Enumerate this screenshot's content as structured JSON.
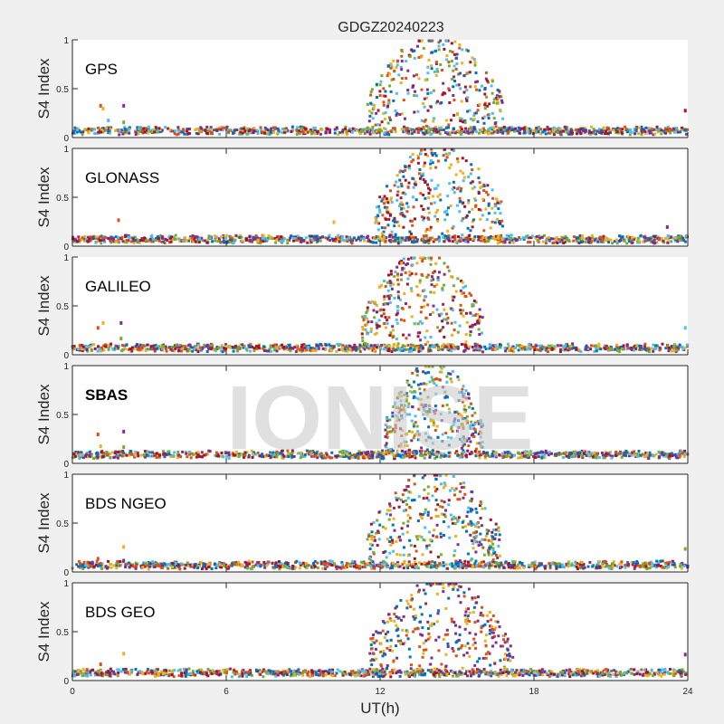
{
  "chart_data": {
    "type": "scatter",
    "title": "GDGZ20240223",
    "xlabel": "UT(h)",
    "ylabel": "S4 Index",
    "xlim": [
      0,
      24
    ],
    "ylim": [
      0,
      1
    ],
    "xticks": [
      0,
      6,
      12,
      18,
      24
    ],
    "xtick_labels": [
      "0",
      "6",
      "12",
      "18",
      "24"
    ],
    "yticks": [
      0,
      0.5,
      1
    ],
    "ytick_labels": [
      "0",
      "0.5",
      "1"
    ],
    "watermark": "IONISE",
    "series_colors": [
      "#0072bd",
      "#d95319",
      "#edb120",
      "#7e2f8e",
      "#77ac30",
      "#4dbeee",
      "#a2142f"
    ],
    "panels": [
      {
        "label": "GPS",
        "bold": false,
        "box": false,
        "baseline": 0.07,
        "scint_window_h": [
          11.5,
          16.8
        ],
        "scint_peak": 1.0,
        "colors_active": [
          6,
          5,
          0,
          2,
          4,
          3,
          1
        ],
        "outliers": [
          [
            1.1,
            0.33
          ],
          [
            1.2,
            0.3
          ],
          [
            2.0,
            0.33
          ],
          [
            2.0,
            0.16
          ],
          [
            1.4,
            0.18
          ],
          [
            23.9,
            0.28
          ]
        ]
      },
      {
        "label": "GLONASS",
        "bold": false,
        "box": true,
        "baseline": 0.07,
        "scint_window_h": [
          11.8,
          16.8
        ],
        "scint_peak": 1.0,
        "colors_active": [
          5,
          6,
          0,
          1,
          2
        ],
        "outliers": [
          [
            1.8,
            0.27
          ],
          [
            10.2,
            0.25
          ],
          [
            23.2,
            0.2
          ]
        ]
      },
      {
        "label": "GALILEO",
        "bold": false,
        "box": false,
        "baseline": 0.07,
        "scint_window_h": [
          11.3,
          16.0
        ],
        "scint_peak": 1.0,
        "colors_active": [
          1,
          6,
          2,
          5,
          4,
          3
        ],
        "outliers": [
          [
            1.0,
            0.28
          ],
          [
            1.2,
            0.33
          ],
          [
            1.9,
            0.33
          ],
          [
            1.9,
            0.17
          ],
          [
            23.9,
            0.28
          ]
        ]
      },
      {
        "label": "SBAS",
        "bold": true,
        "box": true,
        "baseline": 0.09,
        "scint_window_h": [
          12.2,
          16.0
        ],
        "scint_peak": 1.0,
        "colors_active": [
          5,
          2,
          1,
          4,
          3,
          0
        ],
        "outliers": [
          [
            1.0,
            0.3
          ],
          [
            1.1,
            0.18
          ],
          [
            2.0,
            0.33
          ],
          [
            2.0,
            0.17
          ],
          [
            23.9,
            0.1
          ]
        ]
      },
      {
        "label": "BDS NGEO",
        "bold": false,
        "box": true,
        "baseline": 0.07,
        "scint_window_h": [
          11.5,
          16.7
        ],
        "scint_peak": 1.0,
        "colors_active": [
          6,
          3,
          4,
          2,
          0,
          5,
          1
        ],
        "outliers": [
          [
            1.0,
            0.14
          ],
          [
            2.0,
            0.26
          ],
          [
            2.0,
            0.12
          ],
          [
            23.9,
            0.24
          ]
        ]
      },
      {
        "label": "BDS GEO",
        "bold": false,
        "box": true,
        "baseline": 0.08,
        "scint_window_h": [
          11.6,
          17.2
        ],
        "scint_peak": 1.0,
        "colors_active": [
          3,
          0,
          1,
          2
        ],
        "outliers": [
          [
            1.1,
            0.17
          ],
          [
            2.0,
            0.28
          ],
          [
            23.9,
            0.27
          ]
        ]
      }
    ]
  }
}
